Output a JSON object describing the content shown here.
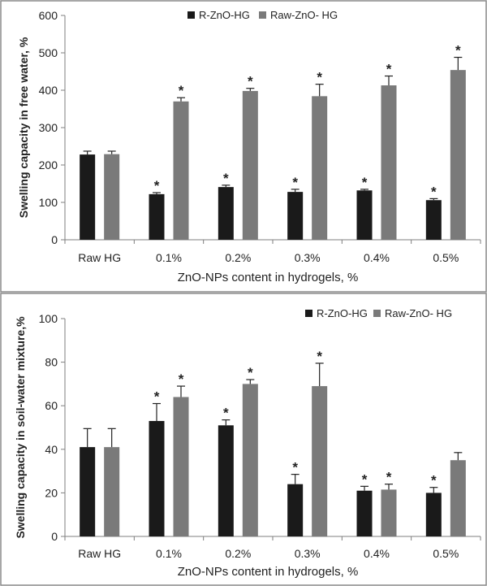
{
  "chart_data": [
    {
      "type": "bar",
      "categories": [
        "Raw HG",
        "0.1%",
        "0.2%",
        "0.3%",
        "0.4%",
        "0.5%"
      ],
      "series": [
        {
          "name": "R-ZnO-HG",
          "color": "#1a1a1a",
          "values": [
            228,
            122,
            141,
            128,
            132,
            106
          ],
          "errors": [
            9,
            4,
            5,
            7,
            3,
            4
          ],
          "significant": [
            false,
            true,
            true,
            true,
            true,
            true
          ]
        },
        {
          "name": "Raw-ZnO- HG",
          "color": "#7a7a7a",
          "values": [
            229,
            370,
            398,
            384,
            413,
            454
          ],
          "errors": [
            8,
            10,
            7,
            32,
            25,
            34
          ],
          "significant": [
            false,
            true,
            true,
            true,
            true,
            true
          ]
        }
      ],
      "xlabel": "ZnO-NPs content in hydrogels, %",
      "ylabel": "Swelling capacity in free water, %",
      "ylim": [
        0,
        600
      ],
      "yticks": [
        0,
        100,
        200,
        300,
        400,
        500,
        600
      ],
      "significance_marker": "*",
      "legend_position": "top-center"
    },
    {
      "type": "bar",
      "categories": [
        "Raw HG",
        "0.1%",
        "0.2%",
        "0.3%",
        "0.4%",
        "0.5%"
      ],
      "series": [
        {
          "name": "R-ZnO-HG",
          "color": "#1a1a1a",
          "values": [
            41,
            53,
            51,
            24,
            21,
            20
          ],
          "errors": [
            8.5,
            8,
            2.5,
            4.5,
            2,
            2.5
          ],
          "significant": [
            false,
            true,
            true,
            true,
            true,
            true
          ]
        },
        {
          "name": "Raw-ZnO- HG",
          "color": "#7a7a7a",
          "values": [
            41,
            64,
            70,
            69,
            21.5,
            35
          ],
          "errors": [
            8.5,
            5,
            2,
            10.5,
            2.5,
            3.5
          ],
          "significant": [
            false,
            true,
            true,
            true,
            true,
            false
          ]
        }
      ],
      "xlabel": "ZnO-NPs content in hydrogels, %",
      "ylabel": "Swelling capacity in soil-water mixture,%",
      "ylim": [
        0,
        100
      ],
      "yticks": [
        0,
        20,
        40,
        60,
        80,
        100
      ],
      "significance_marker": "*",
      "legend_position": "top-right"
    }
  ]
}
